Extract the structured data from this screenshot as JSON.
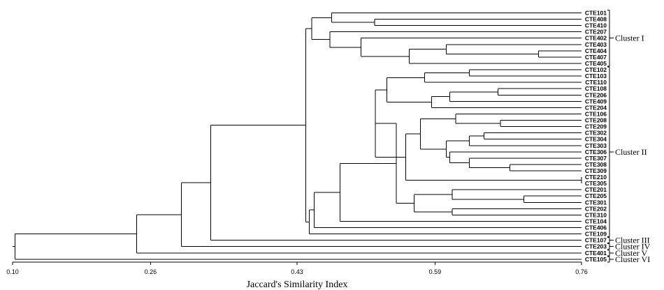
{
  "chart_data": {
    "type": "dendrogram",
    "xlabel": "Jaccard's Similarity Index",
    "xlim": [
      0.1,
      0.76
    ],
    "xticks": [
      "0.10",
      "0.26",
      "0.43",
      "0.59",
      "0.76"
    ],
    "leaves": [
      "CTE101",
      "CTE408",
      "CTE410",
      "CTE207",
      "CTE402",
      "CTE403",
      "CTE404",
      "CTE407",
      "CTE405",
      "CTE102",
      "CTE103",
      "CTE110",
      "CTE108",
      "CTE206",
      "CTE409",
      "CTE204",
      "CTE106",
      "CTE208",
      "CTE209",
      "CTE302",
      "CTE304",
      "CTE303",
      "CTE306",
      "CTE307",
      "CTE308",
      "CTE309",
      "CTE210",
      "CTE305",
      "CTE201",
      "CTE205",
      "CTE301",
      "CTE202",
      "CTE310",
      "CTE104",
      "CTE406",
      "CTE109",
      "CTE107",
      "CTE203",
      "CTE401",
      "CTE105"
    ],
    "merges": [
      {
        "id": "a1",
        "children": [
          "CTE408",
          "CTE410"
        ],
        "similarity": 0.52
      },
      {
        "id": "a2",
        "children": [
          "CTE101",
          "a1"
        ],
        "similarity": 0.47
      },
      {
        "id": "b1",
        "children": [
          "CTE404",
          "CTE407"
        ],
        "similarity": 0.71
      },
      {
        "id": "b2",
        "children": [
          "CTE403",
          "b1"
        ],
        "similarity": 0.603
      },
      {
        "id": "b3",
        "children": [
          "b2",
          "CTE405"
        ],
        "similarity": 0.56
      },
      {
        "id": "b4",
        "children": [
          "CTE402",
          "b3"
        ],
        "similarity": 0.504
      },
      {
        "id": "b5",
        "children": [
          "CTE207",
          "b4"
        ],
        "similarity": 0.468
      },
      {
        "id": "c1",
        "children": [
          "a2",
          "b5"
        ],
        "similarity": 0.447
      },
      {
        "id": "d1",
        "children": [
          "CTE102",
          "CTE103"
        ],
        "similarity": 0.63
      },
      {
        "id": "d2",
        "children": [
          "d1",
          "CTE110"
        ],
        "similarity": 0.578
      },
      {
        "id": "d3",
        "children": [
          "CTE108",
          "CTE206"
        ],
        "similarity": 0.663
      },
      {
        "id": "d4",
        "children": [
          "d3",
          "CTE409"
        ],
        "similarity": 0.607
      },
      {
        "id": "d5",
        "children": [
          "d4",
          "CTE204"
        ],
        "similarity": 0.586
      },
      {
        "id": "d6",
        "children": [
          "d2",
          "d5"
        ],
        "similarity": 0.534
      },
      {
        "id": "e1",
        "children": [
          "CTE208",
          "CTE209"
        ],
        "similarity": 0.666
      },
      {
        "id": "e2",
        "children": [
          "CTE106",
          "e1"
        ],
        "similarity": 0.614
      },
      {
        "id": "e3",
        "children": [
          "CTE302",
          "CTE304"
        ],
        "similarity": 0.647
      },
      {
        "id": "e4",
        "children": [
          "e3",
          "CTE303"
        ],
        "similarity": 0.63
      },
      {
        "id": "e5",
        "children": [
          "CTE308",
          "CTE309"
        ],
        "similarity": 0.677
      },
      {
        "id": "e6",
        "children": [
          "CTE307",
          "e5"
        ],
        "similarity": 0.63
      },
      {
        "id": "e7",
        "children": [
          "CTE306",
          "e6"
        ],
        "similarity": 0.607
      },
      {
        "id": "e8",
        "children": [
          "e4",
          "e7"
        ],
        "similarity": 0.603
      },
      {
        "id": "e9",
        "children": [
          "e2",
          "e8"
        ],
        "similarity": 0.573
      },
      {
        "id": "f1",
        "children": [
          "CTE210",
          "CTE305"
        ],
        "similarity": 0.76
      },
      {
        "id": "f2",
        "children": [
          "e9",
          "f1"
        ],
        "similarity": 0.556
      },
      {
        "id": "g1",
        "children": [
          "d6",
          "f2"
        ],
        "similarity": 0.521
      },
      {
        "id": "h1",
        "children": [
          "CTE205",
          "CTE301"
        ],
        "similarity": 0.693
      },
      {
        "id": "h2",
        "children": [
          "CTE201",
          "h1"
        ],
        "similarity": 0.61
      },
      {
        "id": "h3",
        "children": [
          "CTE202",
          "CTE310"
        ],
        "similarity": 0.61
      },
      {
        "id": "h4",
        "children": [
          "h2",
          "h3"
        ],
        "similarity": 0.566
      },
      {
        "id": "i1",
        "children": [
          "g1",
          "h4"
        ],
        "similarity": 0.545
      },
      {
        "id": "i2",
        "children": [
          "i1",
          "CTE104"
        ],
        "similarity": 0.48
      },
      {
        "id": "i3",
        "children": [
          "i2",
          "CTE406"
        ],
        "similarity": 0.45
      },
      {
        "id": "i4",
        "children": [
          "i3",
          "CTE109"
        ],
        "similarity": 0.444
      },
      {
        "id": "j1",
        "children": [
          "c1",
          "i4"
        ],
        "similarity": 0.44
      },
      {
        "id": "k1",
        "children": [
          "j1",
          "CTE107"
        ],
        "similarity": 0.33
      },
      {
        "id": "l1",
        "children": [
          "k1",
          "CTE203"
        ],
        "similarity": 0.296
      },
      {
        "id": "m1",
        "children": [
          "l1",
          "CTE401"
        ],
        "similarity": 0.244
      },
      {
        "id": "n1",
        "children": [
          "m1",
          "CTE105"
        ],
        "similarity": 0.103
      }
    ],
    "clusters": [
      {
        "name": "Cluster I",
        "from": "CTE101",
        "to": "CTE405"
      },
      {
        "name": "Cluster II",
        "from": "CTE102",
        "to": "CTE109"
      },
      {
        "name": "Cluster III",
        "from": "CTE107",
        "to": "CTE107"
      },
      {
        "name": "Cluster IV",
        "from": "CTE203",
        "to": "CTE203"
      },
      {
        "name": "Cluster V",
        "from": "CTE401",
        "to": "CTE401"
      },
      {
        "name": "Cluster VI",
        "from": "CTE105",
        "to": "CTE105"
      }
    ]
  }
}
